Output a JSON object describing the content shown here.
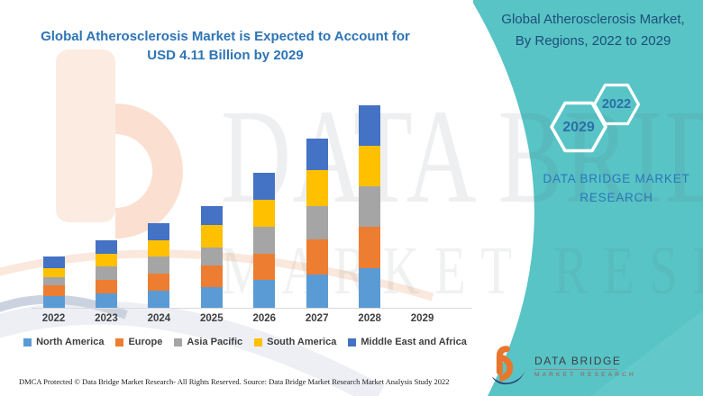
{
  "header": {
    "left_title": "Global Atherosclerosis Market is Expected to Account for USD 4.11 Billion by 2029",
    "right_title_line1": "Global Atherosclerosis Market,",
    "right_title_line2": "By Regions, 2022 to 2029"
  },
  "side_panel": {
    "accent_color": "#58c4c6",
    "hexagons": [
      {
        "year": "2029"
      },
      {
        "year": "2022"
      }
    ],
    "brand_text": "DATA BRIDGE MARKET RESEARCH"
  },
  "chart_data": {
    "type": "bar",
    "stacked": true,
    "title": "Global Atherosclerosis Market is Expected to Account for USD 4.11 Billion by 2029",
    "categories": [
      "2022",
      "2023",
      "2024",
      "2025",
      "2026",
      "2027",
      "2028",
      "2029"
    ],
    "series": [
      {
        "name": "North America",
        "color": "#5b9bd5",
        "values": [
          13,
          16,
          19,
          23,
          31,
          37,
          44,
          0
        ]
      },
      {
        "name": "Europe",
        "color": "#ed7d31",
        "values": [
          12,
          15,
          19,
          24,
          29,
          39,
          46,
          0
        ]
      },
      {
        "name": "Asia Pacific",
        "color": "#a5a5a5",
        "values": [
          9,
          15,
          19,
          20,
          30,
          37,
          45,
          0
        ]
      },
      {
        "name": "South America",
        "color": "#ffc000",
        "values": [
          10,
          14,
          18,
          25,
          30,
          40,
          45,
          0
        ]
      },
      {
        "name": "Middle East and Africa",
        "color": "#4472c4",
        "values": [
          13,
          15,
          19,
          21,
          30,
          35,
          45,
          0
        ]
      }
    ],
    "unit": "relative bar height in px (no value axis shown in source)",
    "note": "2029 category label shown but no bar drawn; headline states USD 4.11 Billion by 2029",
    "xlabel": "",
    "ylabel": "",
    "grid": false,
    "legend_position": "bottom"
  },
  "watermark": {
    "line1": "DATA BRIDGE",
    "line2": "MARKET RESEARCH"
  },
  "logo": {
    "name": "DATA BRIDGE",
    "subtitle": "MARKET RESEARCH"
  },
  "footer": {
    "left": "DMCA Protected © Data Bridge Market Research- All Rights Reserved.",
    "right": "Source: Data Bridge Market Research Market Analysis Study 2022"
  }
}
